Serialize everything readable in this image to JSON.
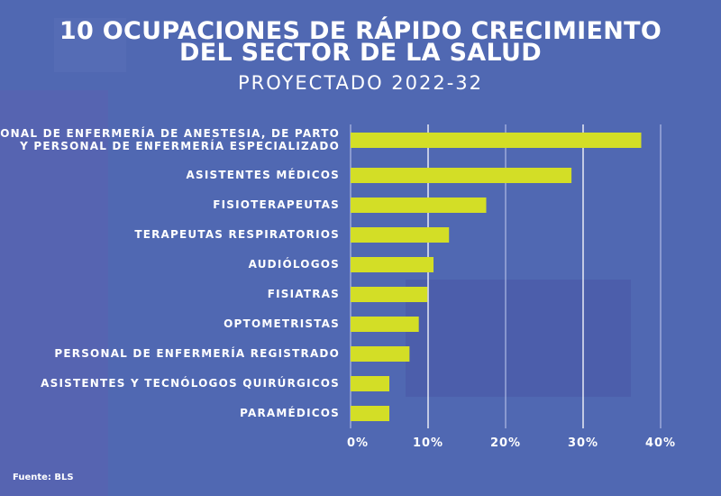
{
  "chart_data": {
    "type": "bar",
    "orientation": "horizontal",
    "title_line1": "10 OCUPACIONES DE RÁPIDO CRECIMIENTO",
    "title_line2": "DEL SECTOR DE LA SALUD",
    "subtitle": "PROYECTADO 2022-32",
    "categories": [
      [
        "PERSONAL DE ENFERMERÍA DE ANESTESIA, DE PARTO",
        "Y PERSONAL DE ENFERMERÍA ESPECIALIZADO"
      ],
      [
        "ASISTENTES MÉDICOS"
      ],
      [
        "FISIOTERAPEUTAS"
      ],
      [
        "TERAPEUTAS RESPIRATORIOS"
      ],
      [
        "AUDIÓLOGOS"
      ],
      [
        "FISIATRAS"
      ],
      [
        "OPTOMETRISTAS"
      ],
      [
        "PERSONAL DE ENFERMERÍA REGISTRADO"
      ],
      [
        "ASISTENTES Y TECNÓLOGOS QUIRÚRGICOS"
      ],
      [
        "PARAMÉDICOS"
      ]
    ],
    "values": [
      37.5,
      28.5,
      17.5,
      12.7,
      10.7,
      9.9,
      8.8,
      7.6,
      5.0,
      5.0
    ],
    "unit": "%",
    "xlim": [
      0,
      40
    ],
    "xticks": [
      0,
      10,
      20,
      30,
      40
    ],
    "xtick_labels": [
      "0%",
      "10%",
      "20%",
      "30%",
      "40%"
    ],
    "grid": "vertical",
    "bar_color": "#d3de26",
    "source": "Fuente: BLS"
  }
}
